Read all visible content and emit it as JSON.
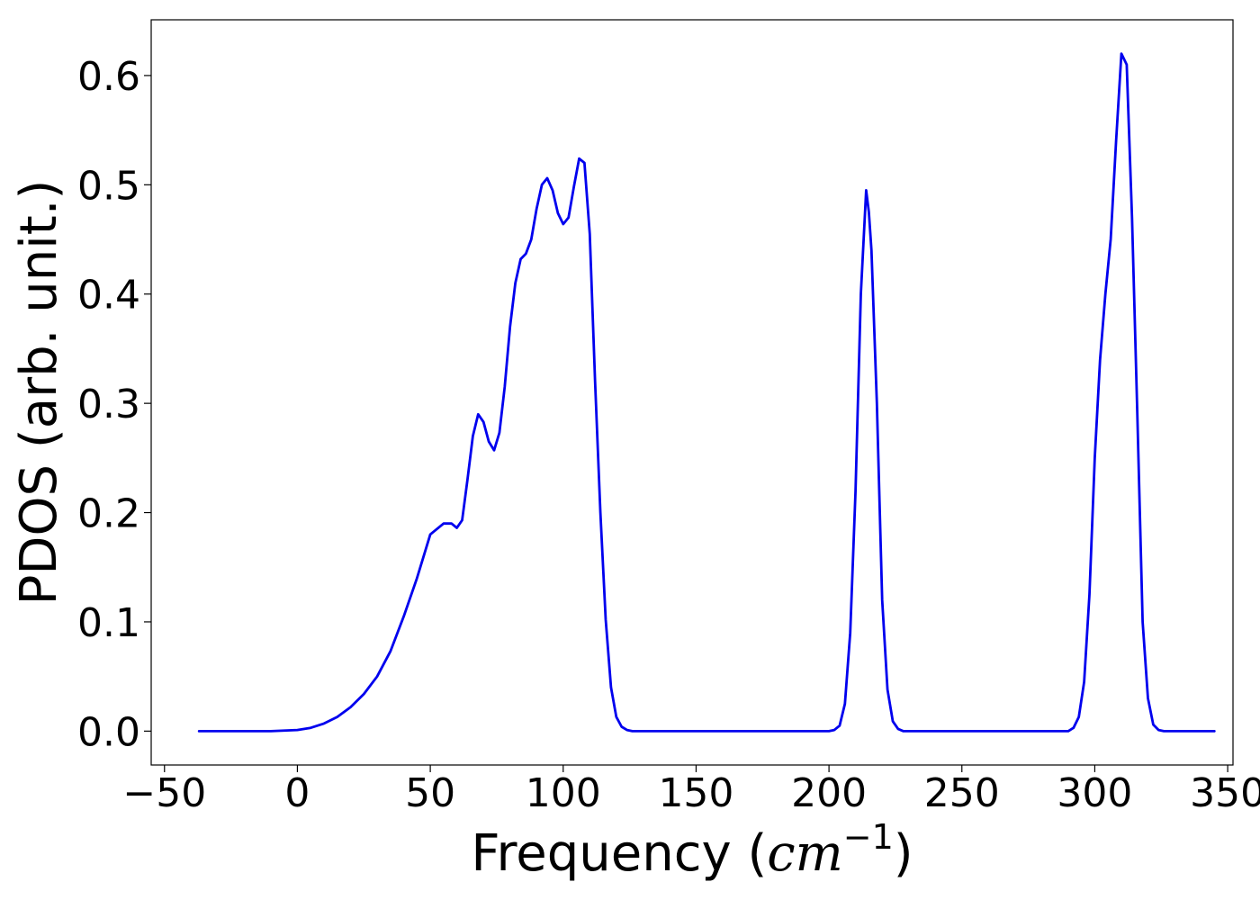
{
  "chart_data": {
    "type": "line",
    "title": "",
    "xlabel": {
      "prefix": "Frequency (",
      "unit_base": "cm",
      "unit_exponent": "−1",
      "suffix": ")"
    },
    "ylabel": "PDOS (arb. unit.)",
    "xlim": [
      -55,
      352
    ],
    "ylim": [
      -0.031,
      0.651
    ],
    "x_ticks": [
      {
        "value": -50,
        "label": "−50"
      },
      {
        "value": 0,
        "label": "0"
      },
      {
        "value": 50,
        "label": "50"
      },
      {
        "value": 100,
        "label": "100"
      },
      {
        "value": 150,
        "label": "150"
      },
      {
        "value": 200,
        "label": "200"
      },
      {
        "value": 250,
        "label": "250"
      },
      {
        "value": 300,
        "label": "300"
      },
      {
        "value": 350,
        "label": "350"
      }
    ],
    "y_ticks": [
      {
        "value": 0.0,
        "label": "0.0"
      },
      {
        "value": 0.1,
        "label": "0.1"
      },
      {
        "value": 0.2,
        "label": "0.2"
      },
      {
        "value": 0.3,
        "label": "0.3"
      },
      {
        "value": 0.4,
        "label": "0.4"
      },
      {
        "value": 0.5,
        "label": "0.5"
      },
      {
        "value": 0.6,
        "label": "0.6"
      }
    ],
    "grid": false,
    "legend": "none",
    "series": [
      {
        "color": "#0000ee",
        "x": [
          -37,
          -10,
          0,
          5,
          10,
          15,
          20,
          25,
          30,
          35,
          40,
          45,
          50,
          55,
          58,
          60,
          62,
          64,
          66,
          68,
          70,
          72,
          74,
          76,
          78,
          80,
          82,
          84,
          86,
          88,
          90,
          92,
          94,
          96,
          98,
          100,
          102,
          104,
          106,
          108,
          110,
          112,
          114,
          116,
          118,
          120,
          122,
          124,
          126,
          128,
          200,
          202,
          204,
          206,
          208,
          210,
          212,
          214,
          215,
          216,
          218,
          220,
          222,
          224,
          226,
          228,
          230,
          290,
          292,
          294,
          296,
          298,
          300,
          302,
          304,
          306,
          308,
          310,
          312,
          314,
          316,
          318,
          320,
          322,
          324,
          326,
          328,
          345
        ],
        "y": [
          0.0,
          0.0,
          0.001,
          0.003,
          0.007,
          0.013,
          0.022,
          0.034,
          0.05,
          0.073,
          0.105,
          0.14,
          0.18,
          0.19,
          0.19,
          0.186,
          0.193,
          0.23,
          0.27,
          0.29,
          0.283,
          0.265,
          0.257,
          0.273,
          0.315,
          0.37,
          0.41,
          0.432,
          0.437,
          0.45,
          0.478,
          0.5,
          0.506,
          0.495,
          0.474,
          0.464,
          0.47,
          0.498,
          0.524,
          0.52,
          0.455,
          0.32,
          0.2,
          0.102,
          0.04,
          0.013,
          0.004,
          0.001,
          0.0,
          0.0,
          0.0,
          0.001,
          0.005,
          0.025,
          0.09,
          0.22,
          0.4,
          0.495,
          0.475,
          0.44,
          0.3,
          0.12,
          0.038,
          0.009,
          0.002,
          0.0,
          0.0,
          0.0,
          0.003,
          0.013,
          0.045,
          0.125,
          0.25,
          0.34,
          0.4,
          0.45,
          0.54,
          0.62,
          0.61,
          0.47,
          0.29,
          0.1,
          0.03,
          0.006,
          0.001,
          0.0,
          0.0,
          0.0
        ]
      }
    ]
  }
}
